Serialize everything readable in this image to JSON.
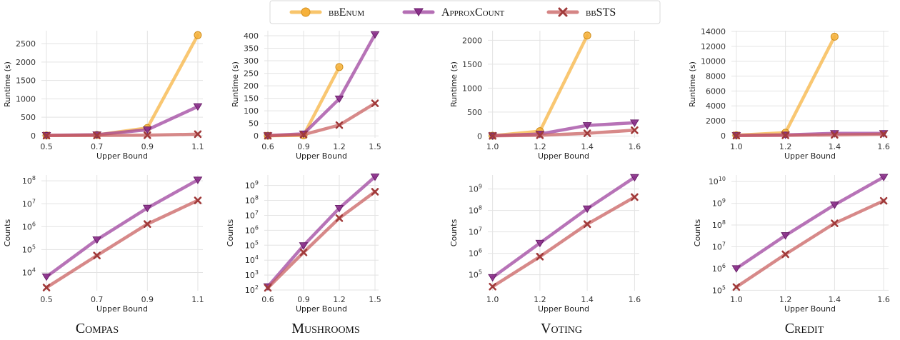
{
  "legend": {
    "items": [
      {
        "label": "bbEnum",
        "color": "#f6b13b",
        "marker": "circle"
      },
      {
        "label": "ApproxCount",
        "color": "#9b3d9b",
        "marker": "triangle-down"
      },
      {
        "label": "bbSTS",
        "color": "#c75c5c",
        "marker": "x"
      }
    ]
  },
  "datasets": [
    "Compas",
    "Mushrooms",
    "Voting",
    "Credit"
  ],
  "chart_data": [
    {
      "type": "line",
      "dataset": "Compas",
      "metric": "runtime",
      "xlabel": "Upper Bound",
      "ylabel": "Runtime (s)",
      "yscale": "linear",
      "ylim": [
        -60,
        2850
      ],
      "yticks": [
        0,
        500,
        1000,
        1500,
        2000,
        2500
      ],
      "yticklabels": [
        "0",
        "500",
        "1000",
        "1500",
        "2000",
        "2500"
      ],
      "xlim": [
        0.48,
        1.12
      ],
      "xticks": [
        0.5,
        0.7,
        0.9,
        1.1
      ],
      "xticklabels": [
        "0.5",
        "0.7",
        "0.9",
        "1.1"
      ],
      "series": [
        {
          "name": "bbEnum",
          "x": [
            0.5,
            0.7,
            0.9,
            1.1
          ],
          "values": [
            5,
            20,
            210,
            2730
          ]
        },
        {
          "name": "ApproxCount",
          "x": [
            0.5,
            0.7,
            0.9,
            1.1
          ],
          "values": [
            8,
            25,
            160,
            790
          ]
        },
        {
          "name": "bbSTS",
          "x": [
            0.5,
            0.7,
            0.9,
            1.1
          ],
          "values": [
            2,
            6,
            12,
            40
          ]
        }
      ]
    },
    {
      "type": "line",
      "dataset": "Mushrooms",
      "metric": "runtime",
      "xlabel": "Upper Bound",
      "ylabel": "Runtime (s)",
      "yscale": "linear",
      "ylim": [
        -8,
        420
      ],
      "yticks": [
        0,
        50,
        100,
        150,
        200,
        250,
        300,
        350,
        400
      ],
      "yticklabels": [
        "0",
        "50",
        "100",
        "150",
        "200",
        "250",
        "300",
        "350",
        "400"
      ],
      "xlim": [
        0.57,
        1.53
      ],
      "xticks": [
        0.6,
        0.9,
        1.2,
        1.5
      ],
      "xticklabels": [
        "0.6",
        "0.9",
        "1.2",
        "1.5"
      ],
      "series": [
        {
          "name": "bbEnum",
          "x": [
            0.6,
            0.9,
            1.2
          ],
          "values": [
            0.5,
            2,
            275
          ]
        },
        {
          "name": "ApproxCount",
          "x": [
            0.6,
            0.9,
            1.2,
            1.5
          ],
          "values": [
            1,
            8,
            148,
            405
          ]
        },
        {
          "name": "bbSTS",
          "x": [
            0.6,
            0.9,
            1.2,
            1.5
          ],
          "values": [
            0.5,
            5,
            43,
            130
          ]
        }
      ]
    },
    {
      "type": "line",
      "dataset": "Voting",
      "metric": "runtime",
      "xlabel": "Upper Bound",
      "ylabel": "Runtime (s)",
      "yscale": "linear",
      "ylim": [
        -40,
        2200
      ],
      "yticks": [
        0,
        500,
        1000,
        1500,
        2000
      ],
      "yticklabels": [
        "0",
        "500",
        "1000",
        "1500",
        "2000"
      ],
      "xlim": [
        0.98,
        1.62
      ],
      "xticks": [
        1.0,
        1.2,
        1.4,
        1.6
      ],
      "xticklabels": [
        "1.0",
        "1.2",
        "1.4",
        "1.6"
      ],
      "series": [
        {
          "name": "bbEnum",
          "x": [
            1.0,
            1.2,
            1.4
          ],
          "values": [
            5,
            100,
            2100
          ]
        },
        {
          "name": "ApproxCount",
          "x": [
            1.0,
            1.2,
            1.4,
            1.6
          ],
          "values": [
            5,
            40,
            220,
            275
          ]
        },
        {
          "name": "bbSTS",
          "x": [
            1.0,
            1.2,
            1.4,
            1.6
          ],
          "values": [
            2,
            15,
            55,
            120
          ]
        }
      ]
    },
    {
      "type": "line",
      "dataset": "Credit",
      "metric": "runtime",
      "xlabel": "Upper Bound",
      "ylabel": "Runtime (s)",
      "yscale": "linear",
      "ylim": [
        -300,
        14100
      ],
      "yticks": [
        0,
        2000,
        4000,
        6000,
        8000,
        10000,
        12000,
        14000
      ],
      "yticklabels": [
        "0",
        "2000",
        "4000",
        "6000",
        "8000",
        "10000",
        "12000",
        "14000"
      ],
      "xlim": [
        0.98,
        1.62
      ],
      "xticks": [
        1.0,
        1.2,
        1.4,
        1.6
      ],
      "xticklabels": [
        "1.0",
        "1.2",
        "1.4",
        "1.6"
      ],
      "series": [
        {
          "name": "bbEnum",
          "x": [
            1.0,
            1.2,
            1.4
          ],
          "values": [
            50,
            400,
            13300
          ]
        },
        {
          "name": "ApproxCount",
          "x": [
            1.0,
            1.2,
            1.4,
            1.6
          ],
          "values": [
            20,
            100,
            300,
            300
          ]
        },
        {
          "name": "bbSTS",
          "x": [
            1.0,
            1.2,
            1.4,
            1.6
          ],
          "values": [
            10,
            40,
            100,
            190
          ]
        }
      ]
    },
    {
      "type": "line",
      "dataset": "Compas",
      "metric": "counts",
      "xlabel": "Upper Bound",
      "ylabel": "Counts",
      "yscale": "log",
      "ylim": [
        1600,
        180000000
      ],
      "yticks": [
        10000,
        100000,
        1000000,
        10000000,
        100000000
      ],
      "yticklabels": [
        "10^4",
        "10^5",
        "10^6",
        "10^7",
        "10^8"
      ],
      "xlim": [
        0.48,
        1.12
      ],
      "xticks": [
        0.5,
        0.7,
        0.9,
        1.1
      ],
      "xticklabels": [
        "0.5",
        "0.7",
        "0.9",
        "1.1"
      ],
      "series": [
        {
          "name": "ApproxCount",
          "x": [
            0.5,
            0.7,
            0.9,
            1.1
          ],
          "values": [
            6500,
            270000,
            6500000,
            110000000
          ]
        },
        {
          "name": "bbSTS",
          "x": [
            0.5,
            0.7,
            0.9,
            1.1
          ],
          "values": [
            2200,
            55000,
            1300000,
            14000000
          ]
        }
      ]
    },
    {
      "type": "line",
      "dataset": "Mushrooms",
      "metric": "counts",
      "xlabel": "Upper Bound",
      "ylabel": "Counts",
      "yscale": "log",
      "ylim": [
        90,
        5000000000
      ],
      "yticks": [
        100,
        1000,
        10000,
        100000,
        1000000,
        10000000,
        100000000,
        1000000000
      ],
      "yticklabels": [
        "10^2",
        "10^3",
        "10^4",
        "10^5",
        "10^6",
        "10^7",
        "10^8",
        "10^9"
      ],
      "xlim": [
        0.57,
        1.53
      ],
      "xticks": [
        0.6,
        0.9,
        1.2,
        1.5
      ],
      "xticklabels": [
        "0.6",
        "0.9",
        "1.2",
        "1.5"
      ],
      "series": [
        {
          "name": "ApproxCount",
          "x": [
            0.6,
            0.9,
            1.2,
            1.5
          ],
          "values": [
            170,
            95000,
            30000000,
            3800000000
          ]
        },
        {
          "name": "bbSTS",
          "x": [
            0.6,
            0.9,
            1.2,
            1.5
          ],
          "values": [
            140,
            33000,
            6500000,
            380000000
          ]
        }
      ]
    },
    {
      "type": "line",
      "dataset": "Voting",
      "metric": "counts",
      "xlabel": "Upper Bound",
      "ylabel": "Counts",
      "yscale": "log",
      "ylim": [
        18000,
        4500000000
      ],
      "yticks": [
        100000,
        1000000,
        10000000,
        100000000,
        1000000000
      ],
      "yticklabels": [
        "10^5",
        "10^6",
        "10^7",
        "10^8",
        "10^9"
      ],
      "xlim": [
        0.98,
        1.62
      ],
      "xticks": [
        1.0,
        1.2,
        1.4,
        1.6
      ],
      "xticklabels": [
        "1.0",
        "1.2",
        "1.4",
        "1.6"
      ],
      "series": [
        {
          "name": "ApproxCount",
          "x": [
            1.0,
            1.2,
            1.4,
            1.6
          ],
          "values": [
            75000,
            3000000,
            120000000,
            3500000000
          ]
        },
        {
          "name": "bbSTS",
          "x": [
            1.0,
            1.2,
            1.4,
            1.6
          ],
          "values": [
            28000,
            700000,
            23000000,
            420000000
          ]
        }
      ]
    },
    {
      "type": "line",
      "dataset": "Credit",
      "metric": "counts",
      "xlabel": "Upper Bound",
      "ylabel": "Counts",
      "yscale": "log",
      "ylim": [
        95000,
        20000000000
      ],
      "yticks": [
        100000,
        1000000,
        10000000,
        100000000,
        1000000000,
        10000000000
      ],
      "yticklabels": [
        "10^5",
        "10^6",
        "10^7",
        "10^8",
        "10^9",
        "10^10"
      ],
      "xlim": [
        0.98,
        1.62
      ],
      "xticks": [
        1.0,
        1.2,
        1.4,
        1.6
      ],
      "xticklabels": [
        "1.0",
        "1.2",
        "1.4",
        "1.6"
      ],
      "series": [
        {
          "name": "ApproxCount",
          "x": [
            1.0,
            1.2,
            1.4,
            1.6
          ],
          "values": [
            1000000,
            33000000,
            850000000,
            16000000000
          ]
        },
        {
          "name": "bbSTS",
          "x": [
            1.0,
            1.2,
            1.4,
            1.6
          ],
          "values": [
            140000,
            4500000,
            120000000,
            1300000000
          ]
        }
      ]
    }
  ]
}
